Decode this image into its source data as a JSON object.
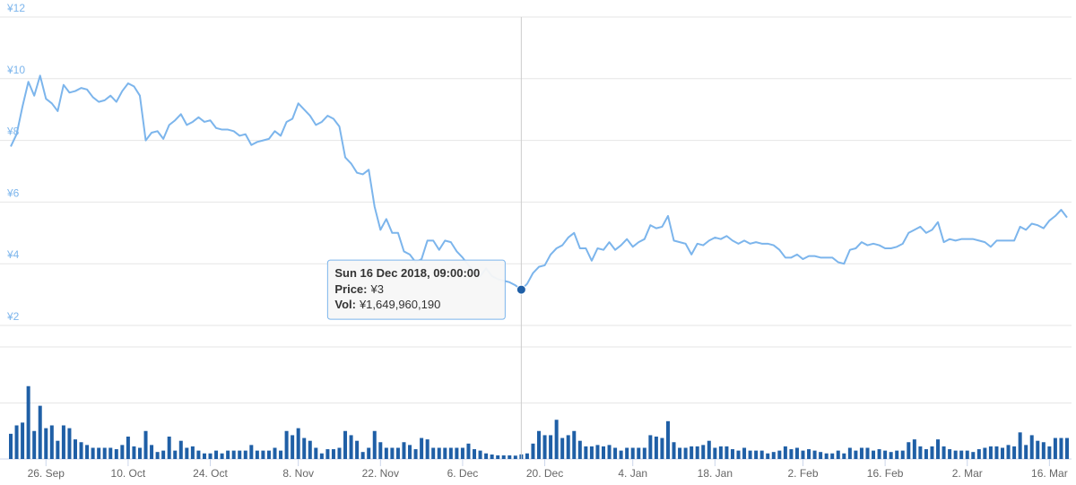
{
  "chart_data": {
    "type": "line",
    "x": [
      "2018-09-20",
      "2018-09-21",
      "2018-09-22",
      "2018-09-23",
      "2018-09-24",
      "2018-09-25",
      "2018-09-26",
      "2018-09-27",
      "2018-09-28",
      "2018-09-29",
      "2018-09-30",
      "2018-10-01",
      "2018-10-02",
      "2018-10-03",
      "2018-10-04",
      "2018-10-05",
      "2018-10-06",
      "2018-10-07",
      "2018-10-08",
      "2018-10-09",
      "2018-10-10",
      "2018-10-11",
      "2018-10-12",
      "2018-10-13",
      "2018-10-14",
      "2018-10-15",
      "2018-10-16",
      "2018-10-17",
      "2018-10-18",
      "2018-10-19",
      "2018-10-20",
      "2018-10-21",
      "2018-10-22",
      "2018-10-23",
      "2018-10-24",
      "2018-10-25",
      "2018-10-26",
      "2018-10-27",
      "2018-10-28",
      "2018-10-29",
      "2018-10-30",
      "2018-10-31",
      "2018-11-01",
      "2018-11-02",
      "2018-11-03",
      "2018-11-04",
      "2018-11-05",
      "2018-11-06",
      "2018-11-07",
      "2018-11-08",
      "2018-11-09",
      "2018-11-10",
      "2018-11-11",
      "2018-11-12",
      "2018-11-13",
      "2018-11-14",
      "2018-11-15",
      "2018-11-16",
      "2018-11-17",
      "2018-11-18",
      "2018-11-19",
      "2018-11-20",
      "2018-11-21",
      "2018-11-22",
      "2018-11-23",
      "2018-11-24",
      "2018-11-25",
      "2018-11-26",
      "2018-11-27",
      "2018-11-28",
      "2018-11-29",
      "2018-11-30",
      "2018-12-01",
      "2018-12-02",
      "2018-12-03",
      "2018-12-04",
      "2018-12-05",
      "2018-12-06",
      "2018-12-07",
      "2018-12-08",
      "2018-12-09",
      "2018-12-10",
      "2018-12-11",
      "2018-12-12",
      "2018-12-13",
      "2018-12-14",
      "2018-12-15",
      "2018-12-16",
      "2018-12-17",
      "2018-12-18",
      "2018-12-19",
      "2018-12-20",
      "2018-12-21",
      "2018-12-22",
      "2018-12-23",
      "2018-12-24",
      "2018-12-25",
      "2018-12-26",
      "2018-12-27",
      "2018-12-28",
      "2018-12-29",
      "2018-12-30",
      "2018-12-31",
      "2019-01-01",
      "2019-01-02",
      "2019-01-03",
      "2019-01-04",
      "2019-01-05",
      "2019-01-06",
      "2019-01-07",
      "2019-01-08",
      "2019-01-09",
      "2019-01-10",
      "2019-01-11",
      "2019-01-12",
      "2019-01-13",
      "2019-01-14",
      "2019-01-15",
      "2019-01-16",
      "2019-01-17",
      "2019-01-18",
      "2019-01-19",
      "2019-01-20",
      "2019-01-21",
      "2019-01-22",
      "2019-01-23",
      "2019-01-24",
      "2019-01-25",
      "2019-01-26",
      "2019-01-27",
      "2019-01-28",
      "2019-01-29",
      "2019-01-30",
      "2019-01-31",
      "2019-02-01",
      "2019-02-02",
      "2019-02-03",
      "2019-02-04",
      "2019-02-05",
      "2019-02-06",
      "2019-02-07",
      "2019-02-08",
      "2019-02-09",
      "2019-02-10",
      "2019-02-11",
      "2019-02-12",
      "2019-02-13",
      "2019-02-14",
      "2019-02-15",
      "2019-02-16",
      "2019-02-17",
      "2019-02-18",
      "2019-02-19",
      "2019-02-20",
      "2019-02-21",
      "2019-02-22",
      "2019-02-23",
      "2019-02-24",
      "2019-02-25",
      "2019-02-26",
      "2019-02-27",
      "2019-02-28",
      "2019-03-01",
      "2019-03-02",
      "2019-03-03",
      "2019-03-04",
      "2019-03-05",
      "2019-03-06",
      "2019-03-07",
      "2019-03-08",
      "2019-03-09",
      "2019-03-10",
      "2019-03-11",
      "2019-03-12",
      "2019-03-13",
      "2019-03-14",
      "2019-03-15",
      "2019-03-16",
      "2019-03-17",
      "2019-03-18",
      "2019-03-19"
    ],
    "series": [
      {
        "name": "Price",
        "color": "#7cb5ec",
        "values": [
          7.8,
          8.2,
          9.1,
          9.9,
          9.45,
          10.1,
          9.35,
          9.2,
          8.95,
          9.8,
          9.55,
          9.6,
          9.7,
          9.65,
          9.4,
          9.25,
          9.3,
          9.45,
          9.25,
          9.6,
          9.85,
          9.75,
          9.45,
          8.0,
          8.25,
          8.3,
          8.05,
          8.5,
          8.65,
          8.85,
          8.5,
          8.6,
          8.75,
          8.6,
          8.65,
          8.4,
          8.35,
          8.35,
          8.3,
          8.15,
          8.2,
          7.85,
          7.95,
          8.0,
          8.05,
          8.3,
          8.15,
          8.6,
          8.7,
          9.2,
          9.0,
          8.8,
          8.5,
          8.6,
          8.8,
          8.7,
          8.45,
          7.45,
          7.25,
          6.95,
          6.9,
          7.05,
          5.85,
          5.1,
          5.45,
          5.0,
          5.0,
          4.4,
          4.3,
          4.05,
          4.15,
          4.75,
          4.75,
          4.45,
          4.75,
          4.7,
          4.4,
          4.2,
          3.95,
          3.75,
          3.6,
          3.85,
          3.6,
          3.5,
          3.45,
          3.4,
          3.3,
          3.16,
          3.35,
          3.7,
          3.9,
          3.95,
          4.3,
          4.5,
          4.6,
          4.85,
          5.0,
          4.5,
          4.5,
          4.1,
          4.5,
          4.45,
          4.7,
          4.45,
          4.6,
          4.8,
          4.55,
          4.7,
          4.8,
          5.25,
          5.15,
          5.2,
          5.55,
          4.75,
          4.7,
          4.65,
          4.3,
          4.65,
          4.6,
          4.75,
          4.85,
          4.8,
          4.9,
          4.75,
          4.65,
          4.75,
          4.65,
          4.7,
          4.65,
          4.65,
          4.6,
          4.45,
          4.2,
          4.2,
          4.3,
          4.15,
          4.25,
          4.25,
          4.2,
          4.2,
          4.2,
          4.05,
          4.0,
          4.45,
          4.5,
          4.7,
          4.6,
          4.65,
          4.6,
          4.5,
          4.5,
          4.55,
          4.65,
          5.0,
          5.1,
          5.2,
          5.0,
          5.1,
          5.35,
          4.7,
          4.8,
          4.75,
          4.8,
          4.8,
          4.8,
          4.75,
          4.7,
          4.55,
          4.75,
          4.75,
          4.75,
          4.75,
          5.2,
          5.1,
          5.3,
          5.25,
          5.15,
          5.4,
          5.55,
          5.75,
          5.5
        ]
      },
      {
        "name": "Vol",
        "color": "#1f5fa6",
        "axis": "y2",
        "values": [
          9000000000,
          12000000000,
          13000000000,
          26000000000,
          10000000000,
          19000000000,
          11000000000,
          12000000000,
          6500000000,
          12000000000,
          11000000000,
          7000000000,
          6000000000,
          5000000000,
          4000000000,
          4000000000,
          4000000000,
          4000000000,
          3500000000,
          5000000000,
          8000000000,
          4500000000,
          4000000000,
          10000000000,
          5000000000,
          2500000000,
          3000000000,
          8000000000,
          3000000000,
          6500000000,
          4000000000,
          4500000000,
          3000000000,
          2000000000,
          2000000000,
          3000000000,
          2000000000,
          3000000000,
          3000000000,
          3000000000,
          3000000000,
          5000000000,
          3000000000,
          3000000000,
          3000000000,
          4000000000,
          3000000000,
          10000000000,
          8500000000,
          11000000000,
          7500000000,
          6500000000,
          4000000000,
          2000000000,
          3500000000,
          3500000000,
          4000000000,
          10000000000,
          8500000000,
          6500000000,
          2500000000,
          4000000000,
          10000000000,
          6000000000,
          4000000000,
          4000000000,
          4000000000,
          6000000000,
          5000000000,
          3500000000,
          7500000000,
          7000000000,
          4000000000,
          4000000000,
          4000000000,
          4000000000,
          4000000000,
          4000000000,
          5500000000,
          3500000000,
          3000000000,
          2000000000,
          1600000000,
          1300000000,
          1300000000,
          1300000000,
          1200000000,
          1649960190,
          2000000000,
          5500000000,
          10000000000,
          8500000000,
          8500000000,
          14000000000,
          7500000000,
          8500000000,
          10000000000,
          6500000000,
          4500000000,
          4500000000,
          5000000000,
          4500000000,
          5000000000,
          4000000000,
          3000000000,
          4000000000,
          4000000000,
          4000000000,
          4000000000,
          8500000000,
          8000000000,
          7500000000,
          13500000000,
          6000000000,
          4000000000,
          4000000000,
          4500000000,
          4500000000,
          5000000000,
          6500000000,
          4000000000,
          4500000000,
          4500000000,
          3500000000,
          3000000000,
          4000000000,
          3000000000,
          3000000000,
          3000000000,
          2000000000,
          2500000000,
          3000000000,
          4500000000,
          3500000000,
          4000000000,
          3000000000,
          3500000000,
          3000000000,
          2500000000,
          2000000000,
          2000000000,
          3000000000,
          2000000000,
          4000000000,
          3000000000,
          4000000000,
          4000000000,
          3000000000,
          3500000000,
          3000000000,
          2500000000,
          3000000000,
          3000000000,
          6000000000,
          7000000000,
          4500000000,
          3500000000,
          4500000000,
          7000000000,
          4500000000,
          3500000000,
          3000000000,
          3000000000,
          3000000000,
          2500000000,
          3500000000,
          4000000000,
          4500000000,
          4500000000,
          4000000000,
          5000000000,
          4500000000,
          9500000000,
          5000000000,
          8500000000,
          6500000000,
          6000000000,
          4500000000,
          7500000000,
          7500000000,
          7500000000
        ]
      }
    ],
    "ylim": [
      2,
      12
    ],
    "yticks": [
      {
        "value": 2,
        "label": "¥2"
      },
      {
        "value": 4,
        "label": "¥4"
      },
      {
        "value": 6,
        "label": "¥6"
      },
      {
        "value": 8,
        "label": "¥8"
      },
      {
        "value": 10,
        "label": "¥10"
      },
      {
        "value": 12,
        "label": "¥12"
      }
    ],
    "y2lim": [
      0,
      40000000000
    ],
    "y2ticks": [
      0,
      20000000000,
      40000000000
    ],
    "xticks": [
      {
        "value": "2018-09-26",
        "label": "26. Sep"
      },
      {
        "value": "2018-10-10",
        "label": "10. Oct"
      },
      {
        "value": "2018-10-24",
        "label": "24. Oct"
      },
      {
        "value": "2018-11-08",
        "label": "8. Nov"
      },
      {
        "value": "2018-11-22",
        "label": "22. Nov"
      },
      {
        "value": "2018-12-06",
        "label": "6. Dec"
      },
      {
        "value": "2018-12-20",
        "label": "20. Dec"
      },
      {
        "value": "2019-01-04",
        "label": "4. Jan"
      },
      {
        "value": "2019-01-18",
        "label": "18. Jan"
      },
      {
        "value": "2019-02-02",
        "label": "2. Feb"
      },
      {
        "value": "2019-02-16",
        "label": "16. Feb"
      },
      {
        "value": "2019-03-02",
        "label": "2. Mar"
      },
      {
        "value": "2019-03-16",
        "label": "16. Mar"
      }
    ],
    "grid": true,
    "tooltip": {
      "x": "2018-12-16",
      "title": "Sun 16 Dec 2018, 09:00:00",
      "rows": [
        {
          "name": "Price:",
          "value": "¥3"
        },
        {
          "name": "Vol:",
          "value": "¥1,649,960,190"
        }
      ]
    }
  }
}
